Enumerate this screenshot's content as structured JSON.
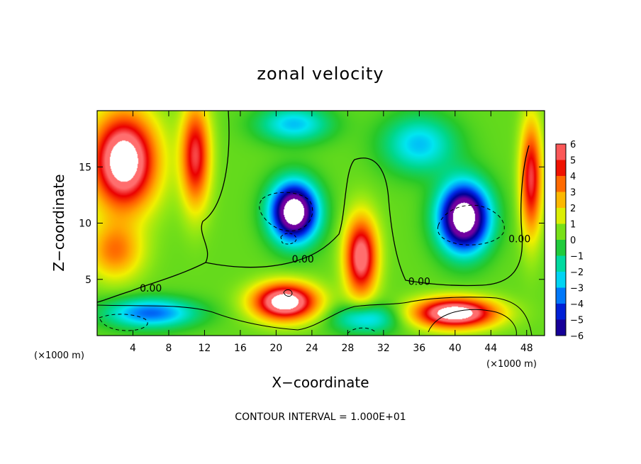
{
  "chart_data": {
    "type": "heatmap",
    "title": "zonal velocity",
    "xlabel": "X−coordinate",
    "ylabel": "Z−coordinate",
    "x_unit_label": "(×1000 m)",
    "x_unit_label_right": "(×1000 m)",
    "xlim": [
      0,
      50
    ],
    "ylim": [
      0,
      20
    ],
    "xticks": [
      4,
      8,
      12,
      16,
      20,
      24,
      28,
      32,
      36,
      40,
      44,
      48
    ],
    "xtick_labels": [
      "4",
      "8",
      "12",
      "16",
      "20",
      "24",
      "28",
      "32",
      "36",
      "40",
      "44",
      "48"
    ],
    "yticks": [
      5,
      10,
      15
    ],
    "ytick_labels": [
      "5",
      "10",
      "15"
    ],
    "colorbar": {
      "min": -6,
      "max": 6,
      "ticks": [
        6,
        5,
        4,
        3,
        2,
        1,
        0,
        -1,
        -2,
        -3,
        -4,
        -5,
        -6
      ],
      "tick_labels": [
        "6",
        "5",
        "4",
        "3",
        "2",
        "1",
        "0",
        "−1",
        "−2",
        "−3",
        "−4",
        "−5",
        "−6"
      ],
      "out_of_range_color": "#ffffff"
    },
    "contour_labels": [
      {
        "text": "0.00",
        "x": 6,
        "y": 3.9
      },
      {
        "text": "0.00",
        "x": 23,
        "y": 6.5
      },
      {
        "text": "0.00",
        "x": 36,
        "y": 4.5
      },
      {
        "text": "0.00",
        "x": 47.2,
        "y": 8.3
      }
    ],
    "footer": "CONTOUR INTERVAL = 1.000E+01",
    "features": [
      {
        "value": 7.5,
        "x": 3,
        "y": 15.5,
        "sx": 3.6,
        "sy": 4.2,
        "label": "strong positive, upper left"
      },
      {
        "value": 5,
        "x": 11,
        "y": 16,
        "sx": 1.6,
        "sy": 4.5
      },
      {
        "value": 3,
        "x": 2,
        "y": 7.5,
        "sx": 3,
        "sy": 2.5
      },
      {
        "value": -9,
        "x": 22,
        "y": 11,
        "sx": 2.6,
        "sy": 2.6,
        "label": "strong negative vortex"
      },
      {
        "value": -9,
        "x": 41,
        "y": 10.5,
        "sx": 2.8,
        "sy": 3
      },
      {
        "value": -3,
        "x": 22,
        "y": 18.8,
        "sx": 4,
        "sy": 1.6
      },
      {
        "value": -3,
        "x": 36,
        "y": 17,
        "sx": 4,
        "sy": 2.5
      },
      {
        "value": 6,
        "x": 29.5,
        "y": 7,
        "sx": 1.8,
        "sy": 3.5
      },
      {
        "value": 7.5,
        "x": 21,
        "y": 3,
        "sx": 3.5,
        "sy": 1.6
      },
      {
        "value": 7.5,
        "x": 40,
        "y": 2,
        "sx": 4.5,
        "sy": 1.3
      },
      {
        "value": -4,
        "x": 6,
        "y": 2,
        "sx": 5,
        "sy": 1.3
      },
      {
        "value": -3,
        "x": 30,
        "y": 1.5,
        "sx": 3.5,
        "sy": 1.3
      },
      {
        "value": 5,
        "x": 48.5,
        "y": 14,
        "sx": 1.2,
        "sy": 5
      }
    ]
  }
}
